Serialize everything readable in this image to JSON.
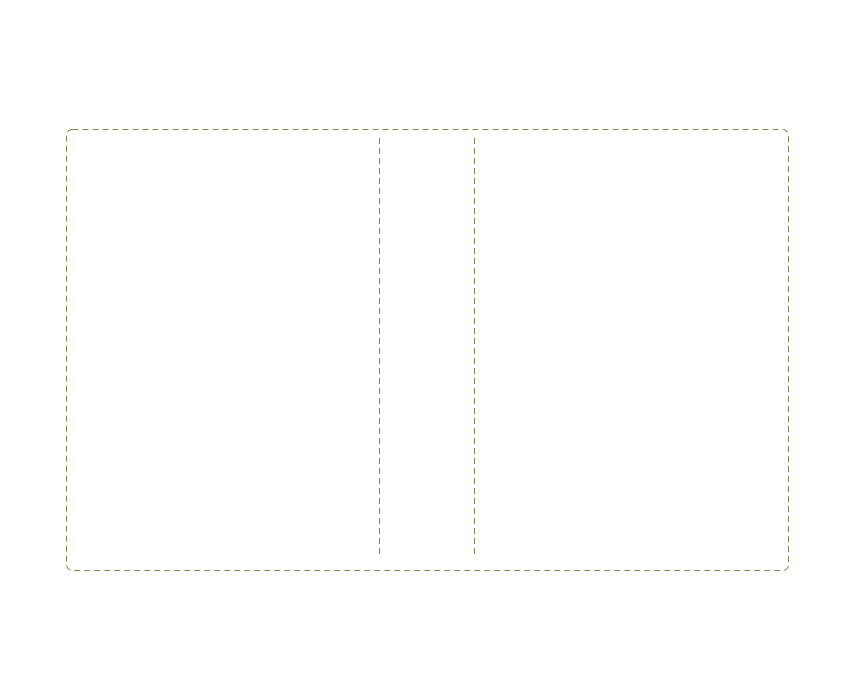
{
  "layout_frame": {
    "stroke_color": "#6f8f4a",
    "columns": 3
  }
}
